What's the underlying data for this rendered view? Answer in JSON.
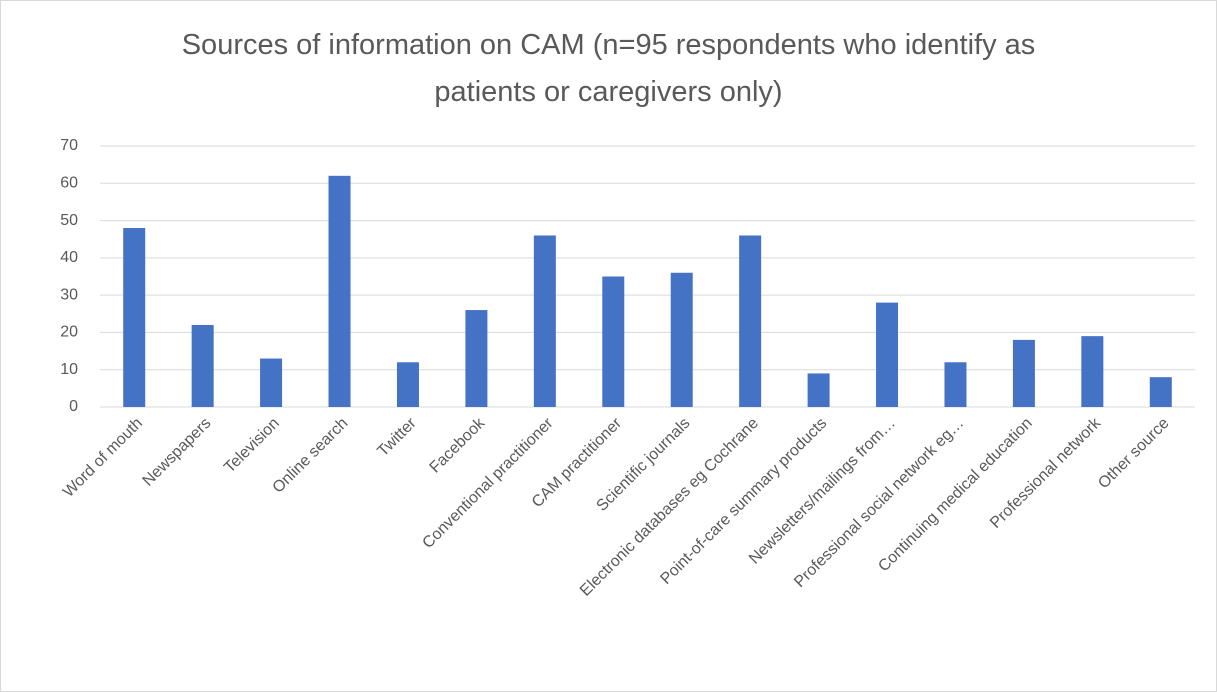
{
  "chart_data": {
    "type": "bar",
    "title": "Sources of information on CAM (n=95 respondents who identify as patients or caregivers only)",
    "categories": [
      "Word of mouth",
      "Newspapers",
      "Television",
      "Online search",
      "Twitter",
      "Facebook",
      "Conventional practitioner",
      "CAM practitioner",
      "Scientific journals",
      "Electronic databases eg Cochrane",
      "Point-of-care summary products",
      "Newsletters/mailings from…",
      "Professional social network eg…",
      "Continuing medical education",
      "Professional network",
      "Other source"
    ],
    "values": [
      48,
      22,
      13,
      62,
      12,
      26,
      46,
      35,
      36,
      46,
      9,
      28,
      12,
      18,
      19,
      8
    ],
    "color": "#4472c4",
    "ylim": [
      0,
      70
    ],
    "yticks": [
      0,
      10,
      20,
      30,
      40,
      50,
      60,
      70
    ],
    "grid": true
  }
}
